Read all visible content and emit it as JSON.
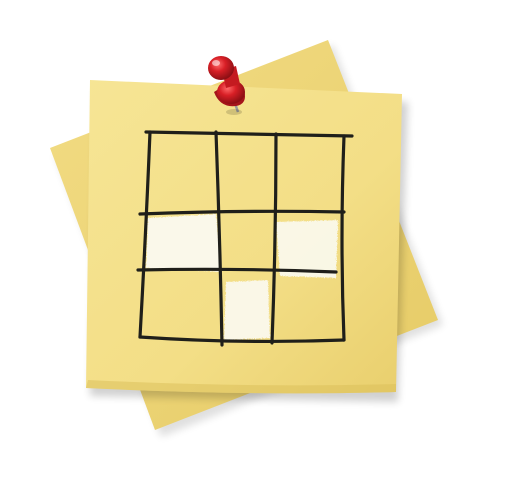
{
  "icon": {
    "name": "sticky-note-grid-icon",
    "description_free": true,
    "grid": {
      "rows": 3,
      "cols": 3,
      "filled_cells": [
        {
          "row": 2,
          "col": 1
        },
        {
          "row": 2,
          "col": 3
        },
        {
          "row": 3,
          "col": 2
        }
      ]
    },
    "colors": {
      "note_front": "#f4e08a",
      "note_back": "#efd77a",
      "pencil": "#1f1f1a",
      "chalk": "#fbfaf2",
      "pin_head": "#d81f26",
      "pin_needle": "#9a9a9a"
    }
  }
}
